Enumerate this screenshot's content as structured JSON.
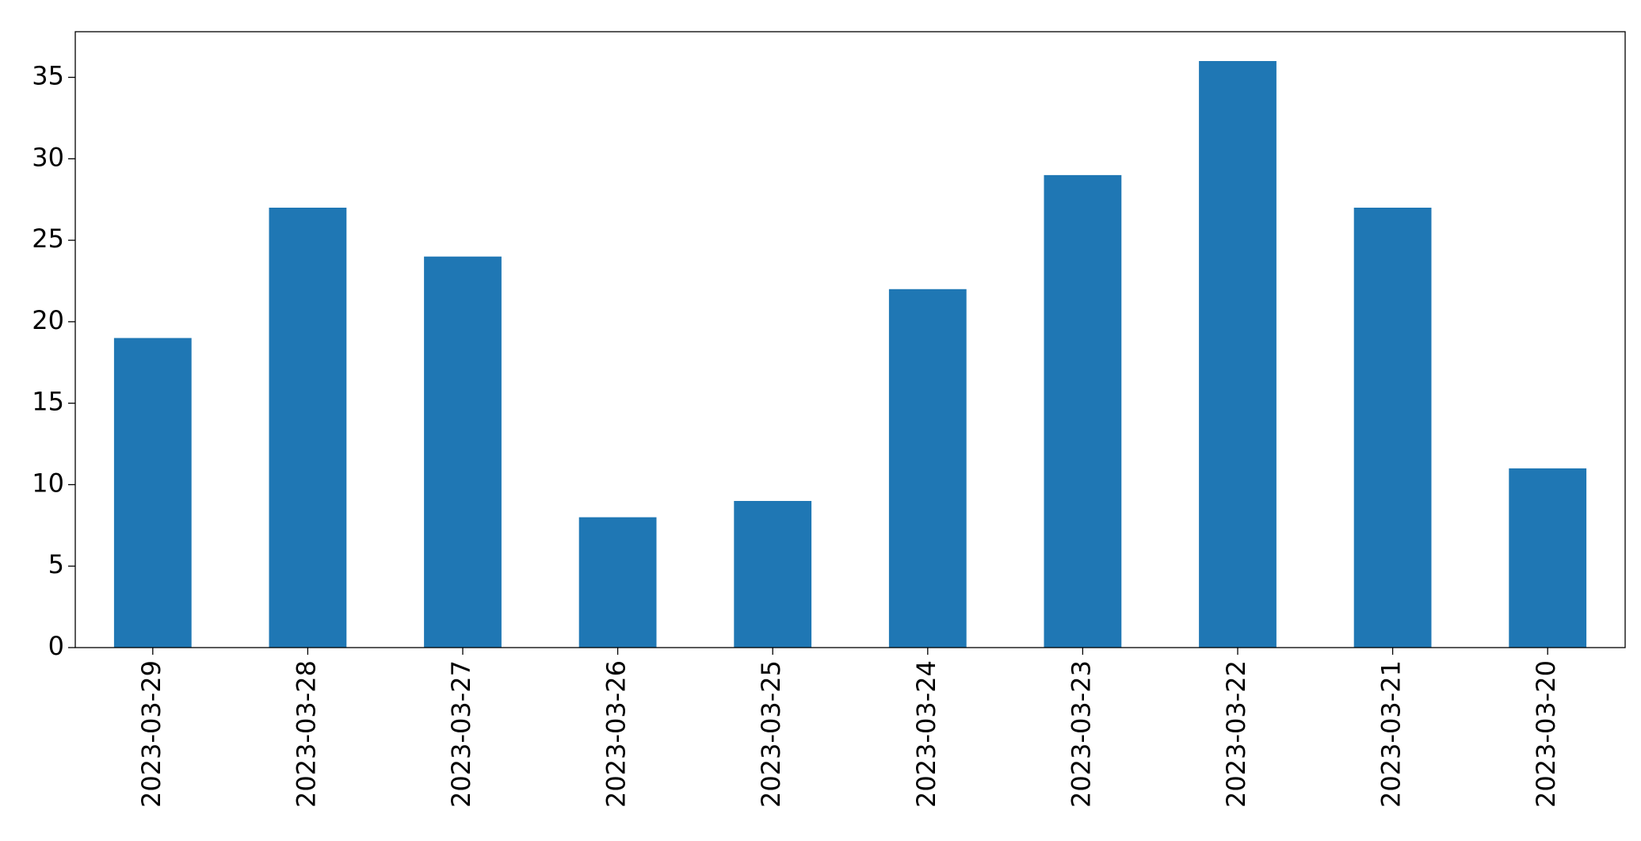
{
  "chart_data": {
    "type": "bar",
    "categories": [
      "2023-03-29",
      "2023-03-28",
      "2023-03-27",
      "2023-03-26",
      "2023-03-25",
      "2023-03-24",
      "2023-03-23",
      "2023-03-22",
      "2023-03-21",
      "2023-03-20"
    ],
    "values": [
      19,
      27,
      24,
      8,
      9,
      22,
      29,
      36,
      27,
      11
    ],
    "color": "#1f77b4",
    "ylim": [
      0,
      37.8
    ],
    "yticks": [
      0,
      5,
      10,
      15,
      20,
      25,
      30,
      35
    ],
    "grid": false
  }
}
